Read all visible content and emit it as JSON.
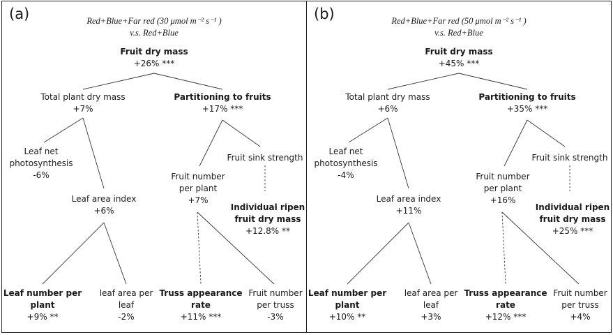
{
  "panels": [
    {
      "letter": "(a)",
      "header1": "Red+Blue+Far red (30 μmol m⁻² s⁻¹ )",
      "header2": "v.s. Red+Blue",
      "fruit_dry_mass": {
        "title": "Fruit dry mass",
        "value": "+26% ***"
      },
      "total_plant_dry_mass": {
        "title": "Total plant dry mass",
        "value": "+7%"
      },
      "partitioning": {
        "title": "Partitioning to fruits",
        "value": "+17% ***"
      },
      "leaf_net_ps": {
        "l1": "Leaf net",
        "l2": "photosynthesis",
        "value": "-6%"
      },
      "lai": {
        "title": "Leaf area index",
        "value": "+6%"
      },
      "fruit_sink": {
        "title": "Fruit sink strength"
      },
      "fruit_number_plant": {
        "l1": "Fruit number",
        "l2": "per plant",
        "value": "+7%"
      },
      "ripen": {
        "l1": "Individual ripen",
        "l2": "fruit dry mass",
        "value": "+12.8% **"
      },
      "leaf_number": {
        "l1": "Leaf number per",
        "l2": "plant",
        "value": "+9% **"
      },
      "leaf_area_per_leaf": {
        "l1": "leaf area per",
        "l2": "leaf",
        "value": "-2%"
      },
      "truss": {
        "l1": "Truss appearance",
        "l2": "rate",
        "value": "+11% ***"
      },
      "fruit_per_truss": {
        "l1": "Fruit number",
        "l2": "per truss",
        "value": "-3%"
      }
    },
    {
      "letter": "(b)",
      "header1": "Red+Blue+Far red (50 μmol m⁻² s⁻¹ )",
      "header2": "v.s. Red+Blue",
      "fruit_dry_mass": {
        "title": "Fruit dry mass",
        "value": "+45% ***"
      },
      "total_plant_dry_mass": {
        "title": "Total plant dry mass",
        "value": "+6%"
      },
      "partitioning": {
        "title": "Partitioning to fruits",
        "value": "+35% ***"
      },
      "leaf_net_ps": {
        "l1": "Leaf net",
        "l2": "photosynthesis",
        "value": "-4%"
      },
      "lai": {
        "title": "Leaf area index",
        "value": "+11%"
      },
      "fruit_sink": {
        "title": "Fruit sink strength"
      },
      "fruit_number_plant": {
        "l1": "Fruit number",
        "l2": "per plant",
        "value": "+16%"
      },
      "ripen": {
        "l1": "Individual ripen",
        "l2": "fruit dry mass",
        "value": "+25% ***"
      },
      "leaf_number": {
        "l1": "Leaf number per",
        "l2": "plant",
        "value": "+10% **"
      },
      "leaf_area_per_leaf": {
        "l1": "leaf area per",
        "l2": "leaf",
        "value": "+3%"
      },
      "truss": {
        "l1": "Truss appearance",
        "l2": "rate",
        "value": "+12% ***"
      },
      "fruit_per_truss": {
        "l1": "Fruit number",
        "l2": "per truss",
        "value": "+4%"
      }
    }
  ]
}
